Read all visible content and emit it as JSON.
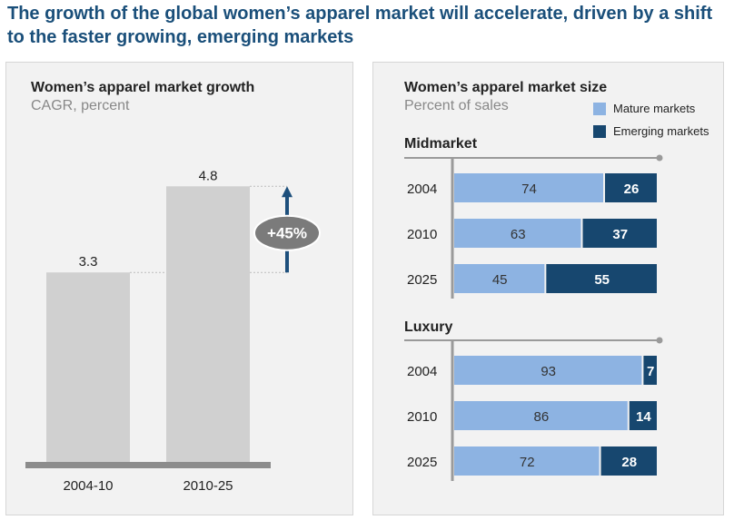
{
  "headline": "The growth of the global women’s apparel market will accelerate, driven by a shift to the faster growing, emerging markets",
  "colors": {
    "grey_bar": "#d0d0d0",
    "axis": "#8c8c8c",
    "mature": "#8db3e2",
    "emerging": "#17476f",
    "arrow": "#1d4f7c",
    "badge": "#7b7b7b"
  },
  "chart_data": [
    {
      "type": "bar",
      "title": "Women’s apparel market growth",
      "ylabel": "CAGR, percent",
      "categories": [
        "2004-10",
        "2010-25"
      ],
      "values": [
        3.3,
        4.8
      ],
      "value_labels": [
        "3.3",
        "4.8"
      ],
      "ylim": [
        0,
        5.5
      ],
      "annotation": "+45%"
    },
    {
      "type": "bar",
      "orientation": "horizontal",
      "stacked": true,
      "title": "Women’s apparel market size",
      "ylabel": "Percent of sales",
      "legend": [
        "Mature markets",
        "Emerging markets"
      ],
      "groups": [
        {
          "name": "Midmarket",
          "categories": [
            "2004",
            "2010",
            "2025"
          ],
          "series": [
            {
              "name": "Mature markets",
              "values": [
                74,
                63,
                45
              ]
            },
            {
              "name": "Emerging markets",
              "values": [
                26,
                37,
                55
              ]
            }
          ]
        },
        {
          "name": "Luxury",
          "categories": [
            "2004",
            "2010",
            "2025"
          ],
          "series": [
            {
              "name": "Mature markets",
              "values": [
                93,
                86,
                72
              ]
            },
            {
              "name": "Emerging markets",
              "values": [
                7,
                14,
                28
              ]
            }
          ]
        }
      ]
    }
  ]
}
